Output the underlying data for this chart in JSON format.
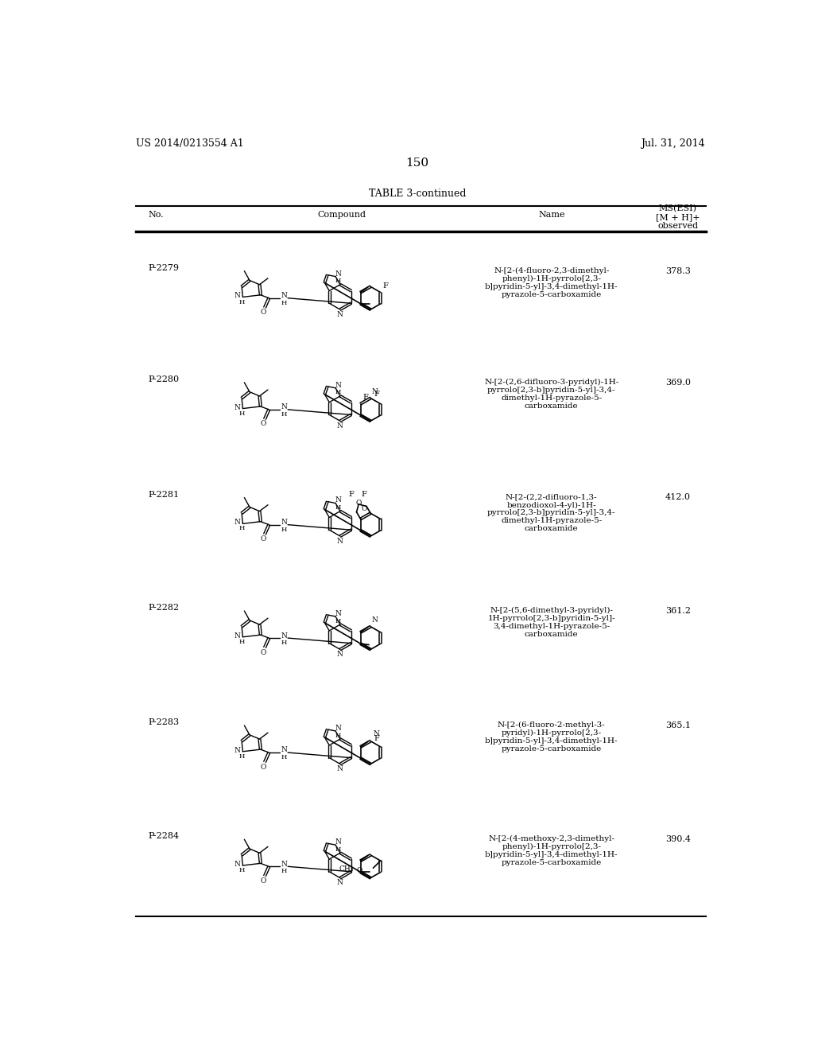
{
  "page_number": "150",
  "patent_number": "US 2014/0213554 A1",
  "patent_date": "Jul. 31, 2014",
  "table_title": "TABLE 3-continued",
  "background_color": "#ffffff",
  "rows": [
    {
      "no": "P-2279",
      "name": "N-[2-(4-fluoro-2,3-dimethyl-\nphenyl)-1H-pyrrolo[2,3-\nb]pyridin-5-yl]-3,4-dimethyl-1H-\npyrazole-5-carboxamide",
      "ms": "378.3"
    },
    {
      "no": "P-2280",
      "name": "N-[2-(2,6-difluoro-3-pyridyl)-1H-\npyrrolo[2,3-b]pyridin-5-yl]-3,4-\ndimethyl-1H-pyrazole-5-\ncarboxamide",
      "ms": "369.0"
    },
    {
      "no": "P-2281",
      "name": "N-[2-(2,2-difluoro-1,3-\nbenzodioxol-4-yl)-1H-\npyrrolo[2,3-b]pyridin-5-yl]-3,4-\ndimethyl-1H-pyrazole-5-\ncarboxamide",
      "ms": "412.0"
    },
    {
      "no": "P-2282",
      "name": "N-[2-(5,6-dimethyl-3-pyridyl)-\n1H-pyrrolo[2,3-b]pyridin-5-yl]-\n3,4-dimethyl-1H-pyrazole-5-\ncarboxamide",
      "ms": "361.2"
    },
    {
      "no": "P-2283",
      "name": "N-[2-(6-fluoro-2-methyl-3-\npyridyl)-1H-pyrrolo[2,3-\nb]pyridin-5-yl]-3,4-dimethyl-1H-\npyrazole-5-carboxamide",
      "ms": "365.1"
    },
    {
      "no": "P-2284",
      "name": "N-[2-(4-methoxy-2,3-dimethyl-\nphenyl)-1H-pyrrolo[2,3-\nb]pyridin-5-yl]-3,4-dimethyl-1H-\npyrazole-5-carboxamide",
      "ms": "390.4"
    }
  ]
}
